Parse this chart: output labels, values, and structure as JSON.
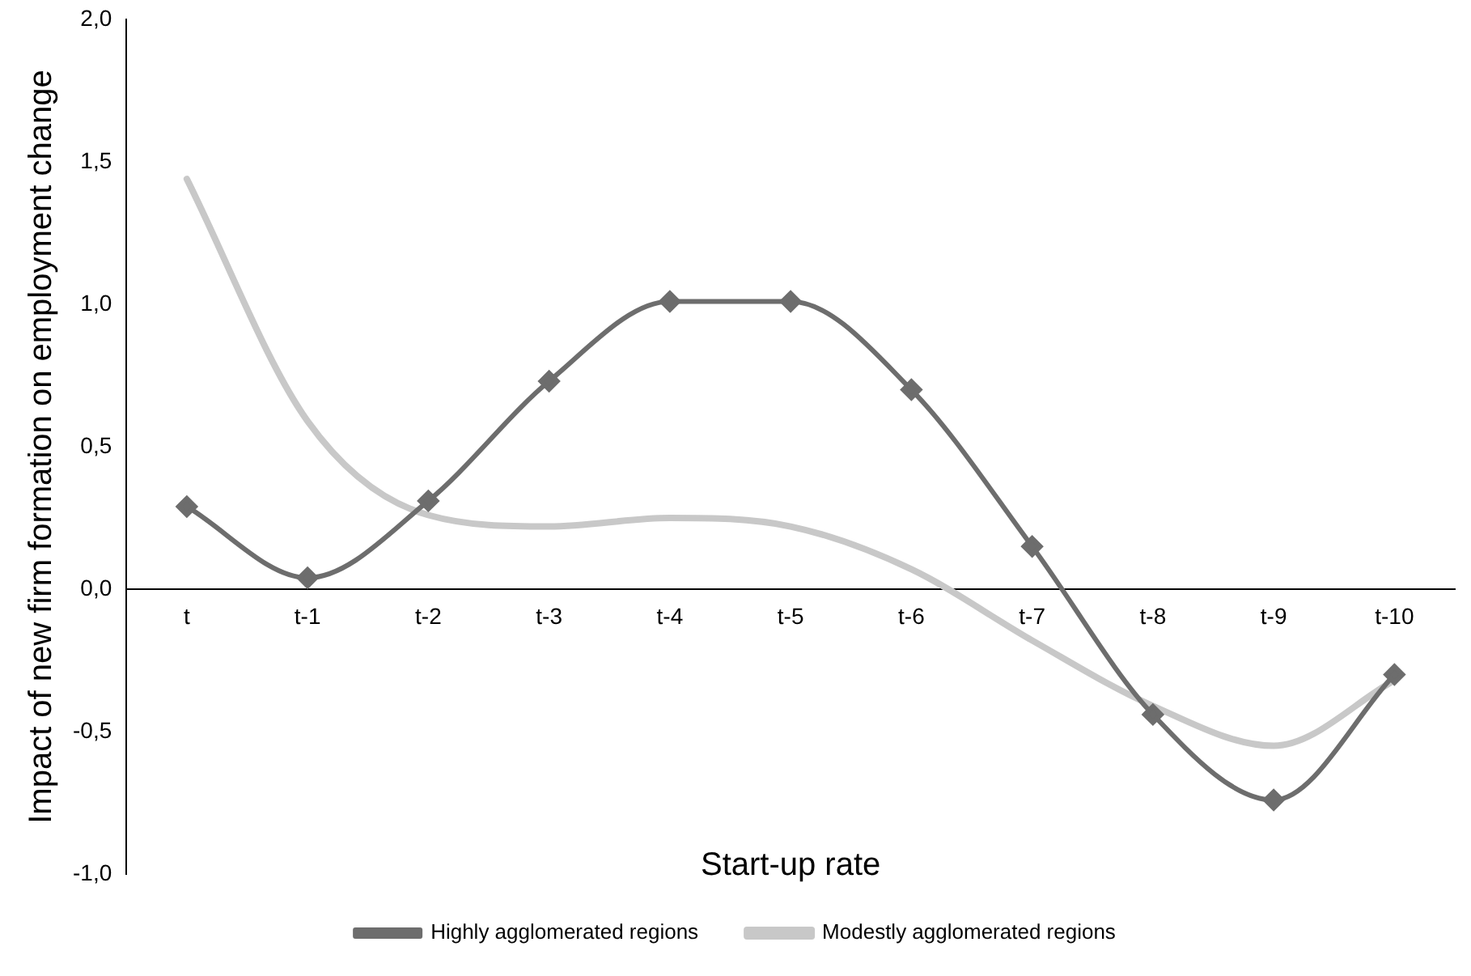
{
  "chart_data": {
    "type": "line",
    "xlabel": "Start-up rate",
    "ylabel": "Impact of new firm formation on employment change",
    "categories": [
      "t",
      "t-1",
      "t-2",
      "t-3",
      "t-4",
      "t-5",
      "t-6",
      "t-7",
      "t-8",
      "t-9",
      "t-10"
    ],
    "series": [
      {
        "name": "Highly agglomerated regions",
        "color": "#6d6d6d",
        "marker": "diamond",
        "values": [
          0.29,
          0.04,
          0.31,
          0.73,
          1.01,
          1.01,
          0.7,
          0.15,
          -0.44,
          -0.74,
          -0.3
        ]
      },
      {
        "name": "Modestly agglomerated regions",
        "color": "#c8c8c8",
        "marker": "none",
        "values": [
          1.44,
          0.59,
          0.26,
          0.22,
          0.25,
          0.22,
          0.07,
          -0.18,
          -0.41,
          -0.55,
          -0.32
        ]
      }
    ],
    "ylim": [
      -1,
      2
    ],
    "yticks": [
      {
        "value": -1,
        "label": "-1,0"
      },
      {
        "value": -0.5,
        "label": "-0,5"
      },
      {
        "value": 0,
        "label": "0,0"
      },
      {
        "value": 0.5,
        "label": "0,5"
      },
      {
        "value": 1,
        "label": "1,0"
      },
      {
        "value": 1.5,
        "label": "1,5"
      },
      {
        "value": 2,
        "label": "2,0"
      }
    ],
    "grid": false,
    "legend": "bottom",
    "line_style": "solid"
  }
}
